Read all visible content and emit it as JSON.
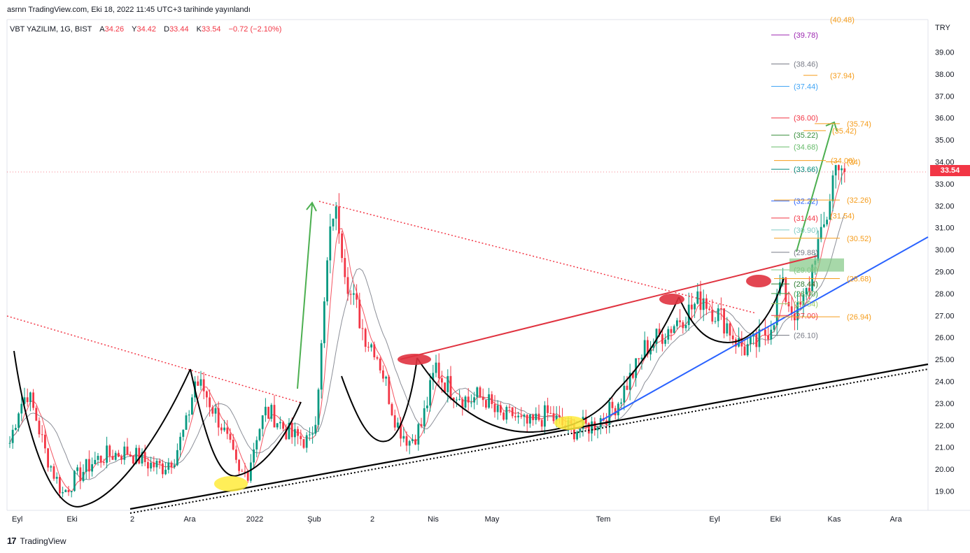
{
  "header": {
    "publish_line": "asrnn TradingView.com, Eki 18, 2022 11:45 UTC+3 tarihinde yayınlandı"
  },
  "symbol": {
    "name": "VBT YAZILIM, 1G, BIST",
    "open_label": "A",
    "open": "34.26",
    "high_label": "Y",
    "high": "34.42",
    "low_label": "D",
    "low": "33.44",
    "close_label": "K",
    "close": "33.54",
    "change": "−0.72 (−2.10%)"
  },
  "currency": "TRY",
  "last_price": "33.54",
  "footer": {
    "brand": "TradingView",
    "logo": "17"
  },
  "colors": {
    "up": "#089981",
    "down": "#f23645",
    "trend_red": "#e0323f",
    "trend_blue": "#2962ff",
    "arrow_green": "#4caf50",
    "fib_orange": "#f59c1a"
  },
  "chart_data": {
    "type": "candlestick",
    "title": "",
    "xlabel": "",
    "ylabel": "",
    "ylim": [
      18.2,
      40.6
    ],
    "y_ticks": [
      "19.00",
      "20.00",
      "21.00",
      "22.00",
      "23.00",
      "24.00",
      "25.00",
      "26.00",
      "27.00",
      "28.00",
      "29.00",
      "30.00",
      "31.00",
      "32.00",
      "33.00",
      "34.00",
      "35.00",
      "36.00",
      "37.00",
      "38.00",
      "39.00"
    ],
    "x_ticks": [
      "Eyl",
      "Eki",
      "2",
      "Ara",
      "2022",
      "Şub",
      "2",
      "Nis",
      "May",
      "Tem",
      "Eyl",
      "Eki",
      "Kas",
      "Ara"
    ],
    "price_path": [
      [
        0,
        21.2
      ],
      [
        3,
        22.8
      ],
      [
        6,
        23.5
      ],
      [
        9,
        22.3
      ],
      [
        12,
        20.8
      ],
      [
        15,
        19.8
      ],
      [
        18,
        18.9
      ],
      [
        21,
        19.4
      ],
      [
        24,
        19.8
      ],
      [
        28,
        20.3
      ],
      [
        32,
        20.6
      ],
      [
        36,
        20.7
      ],
      [
        40,
        20.8
      ],
      [
        44,
        20.5
      ],
      [
        48,
        20.2
      ],
      [
        52,
        20.1
      ],
      [
        56,
        20.6
      ],
      [
        60,
        22.0
      ],
      [
        63,
        24.0
      ],
      [
        66,
        23.6
      ],
      [
        69,
        22.8
      ],
      [
        72,
        22.0
      ],
      [
        75,
        20.9
      ],
      [
        78,
        19.7
      ],
      [
        81,
        19.9
      ],
      [
        84,
        21.6
      ],
      [
        87,
        22.6
      ],
      [
        90,
        22.4
      ],
      [
        93,
        21.9
      ],
      [
        96,
        21.5
      ],
      [
        99,
        21.4
      ],
      [
        102,
        21.2
      ],
      [
        104,
        22.5
      ],
      [
        106,
        25.5
      ],
      [
        108,
        29.3
      ],
      [
        110,
        31.8
      ],
      [
        112,
        31.2
      ],
      [
        114,
        29.3
      ],
      [
        116,
        27.9
      ],
      [
        118,
        27.3
      ],
      [
        120,
        26.4
      ],
      [
        122,
        25.8
      ],
      [
        124,
        25.6
      ],
      [
        126,
        24.8
      ],
      [
        128,
        23.9
      ],
      [
        130,
        22.8
      ],
      [
        132,
        22.0
      ],
      [
        134,
        21.6
      ],
      [
        136,
        21.3
      ],
      [
        138,
        21.6
      ],
      [
        140,
        22.0
      ],
      [
        143,
        23.6
      ],
      [
        145,
        24.7
      ],
      [
        147,
        24.1
      ],
      [
        150,
        23.7
      ],
      [
        153,
        23.4
      ],
      [
        156,
        23.1
      ],
      [
        159,
        23.3
      ],
      [
        162,
        23.2
      ],
      [
        165,
        22.6
      ],
      [
        168,
        22.3
      ],
      [
        171,
        22.5
      ],
      [
        174,
        22.1
      ],
      [
        177,
        22.0
      ],
      [
        180,
        22.3
      ],
      [
        183,
        22.5
      ],
      [
        186,
        22.2
      ],
      [
        189,
        21.9
      ],
      [
        192,
        21.8
      ],
      [
        195,
        21.9
      ],
      [
        198,
        22.0
      ],
      [
        201,
        22.3
      ],
      [
        204,
        22.6
      ],
      [
        207,
        23.1
      ],
      [
        210,
        23.9
      ],
      [
        213,
        24.6
      ],
      [
        216,
        25.5
      ],
      [
        219,
        25.8
      ],
      [
        222,
        26.2
      ],
      [
        225,
        26.5
      ],
      [
        228,
        26.9
      ],
      [
        231,
        27.2
      ],
      [
        234,
        27.6
      ],
      [
        236,
        27.9
      ],
      [
        238,
        27.4
      ],
      [
        240,
        27.2
      ],
      [
        242,
        26.9
      ],
      [
        244,
        26.6
      ],
      [
        246,
        26.1
      ],
      [
        248,
        25.7
      ],
      [
        250,
        25.5
      ],
      [
        252,
        25.6
      ],
      [
        254,
        25.7
      ],
      [
        256,
        26.0
      ],
      [
        258,
        26.4
      ],
      [
        260,
        27.0
      ],
      [
        262,
        28.4
      ],
      [
        264,
        27.9
      ],
      [
        266,
        27.3
      ],
      [
        268,
        27.1
      ],
      [
        270,
        27.6
      ],
      [
        272,
        28.4
      ],
      [
        274,
        30.0
      ],
      [
        276,
        30.4
      ],
      [
        278,
        31.6
      ],
      [
        280,
        33.3
      ],
      [
        282,
        34.2
      ],
      [
        284,
        33.54
      ]
    ],
    "moving_averages": [
      {
        "name": "",
        "color": "#f23645",
        "period": 5
      },
      {
        "name": "",
        "color": "#787b86",
        "period": 13
      }
    ],
    "fib_levels_gray_group": [
      {
        "label": "(39.78)",
        "value": 39.78,
        "color": "#9c27b0"
      },
      {
        "label": "(38.46)",
        "value": 38.46,
        "color": "#787b86"
      },
      {
        "label": "(37.44)",
        "value": 37.44,
        "color": "#42a5f5"
      },
      {
        "label": "(36.00)",
        "value": 36.0,
        "color": "#f23645"
      },
      {
        "label": "(35.22)",
        "value": 35.22,
        "color": "#388e3c"
      },
      {
        "label": "(34.68)",
        "value": 34.68,
        "color": "#66bb6a"
      },
      {
        "label": "(33.66)",
        "value": 33.66,
        "color": "#00897b"
      },
      {
        "label": "(32.22)",
        "value": 32.22,
        "color": "#2962ff"
      },
      {
        "label": "(31.44)",
        "value": 31.44,
        "color": "#f23645"
      },
      {
        "label": "(30.90)",
        "value": 30.9,
        "color": "#80cbc4"
      },
      {
        "label": "(29.88)",
        "value": 29.88,
        "color": "#787b86"
      },
      {
        "label": "(29.08)",
        "value": 29.08,
        "color": "#81c784"
      },
      {
        "label": "(28.44)",
        "value": 28.44,
        "color": "#2e7d32"
      },
      {
        "label": "(28.00)",
        "value": 28.0,
        "color": "#43a047"
      },
      {
        "label": "(27.54)",
        "value": 27.54,
        "color": "#9ccc65"
      },
      {
        "label": "(27.00)",
        "value": 27.0,
        "color": "#f23645"
      },
      {
        "label": "(26.10)",
        "value": 26.1,
        "color": "#787b86"
      }
    ],
    "fib_levels_orange_group": [
      {
        "label": "(40.48)",
        "value": 40.48
      },
      {
        "label": "(37.94)",
        "value": 37.94
      },
      {
        "label": "(35.74)",
        "value": 35.74
      },
      {
        "label": "(35.42)",
        "value": 35.42
      },
      {
        "label": "(34.06)",
        "value": 34.06
      },
      {
        "label": "(34)",
        "value": 34.0
      },
      {
        "label": "(32.26)",
        "value": 32.26
      },
      {
        "label": "(31.54)",
        "value": 31.54
      },
      {
        "label": "(30.52)",
        "value": 30.52
      },
      {
        "label": "(28.68)",
        "value": 28.68
      },
      {
        "label": "(26.94)",
        "value": 26.94
      }
    ],
    "support_zone": [
      29.0,
      29.6
    ]
  }
}
